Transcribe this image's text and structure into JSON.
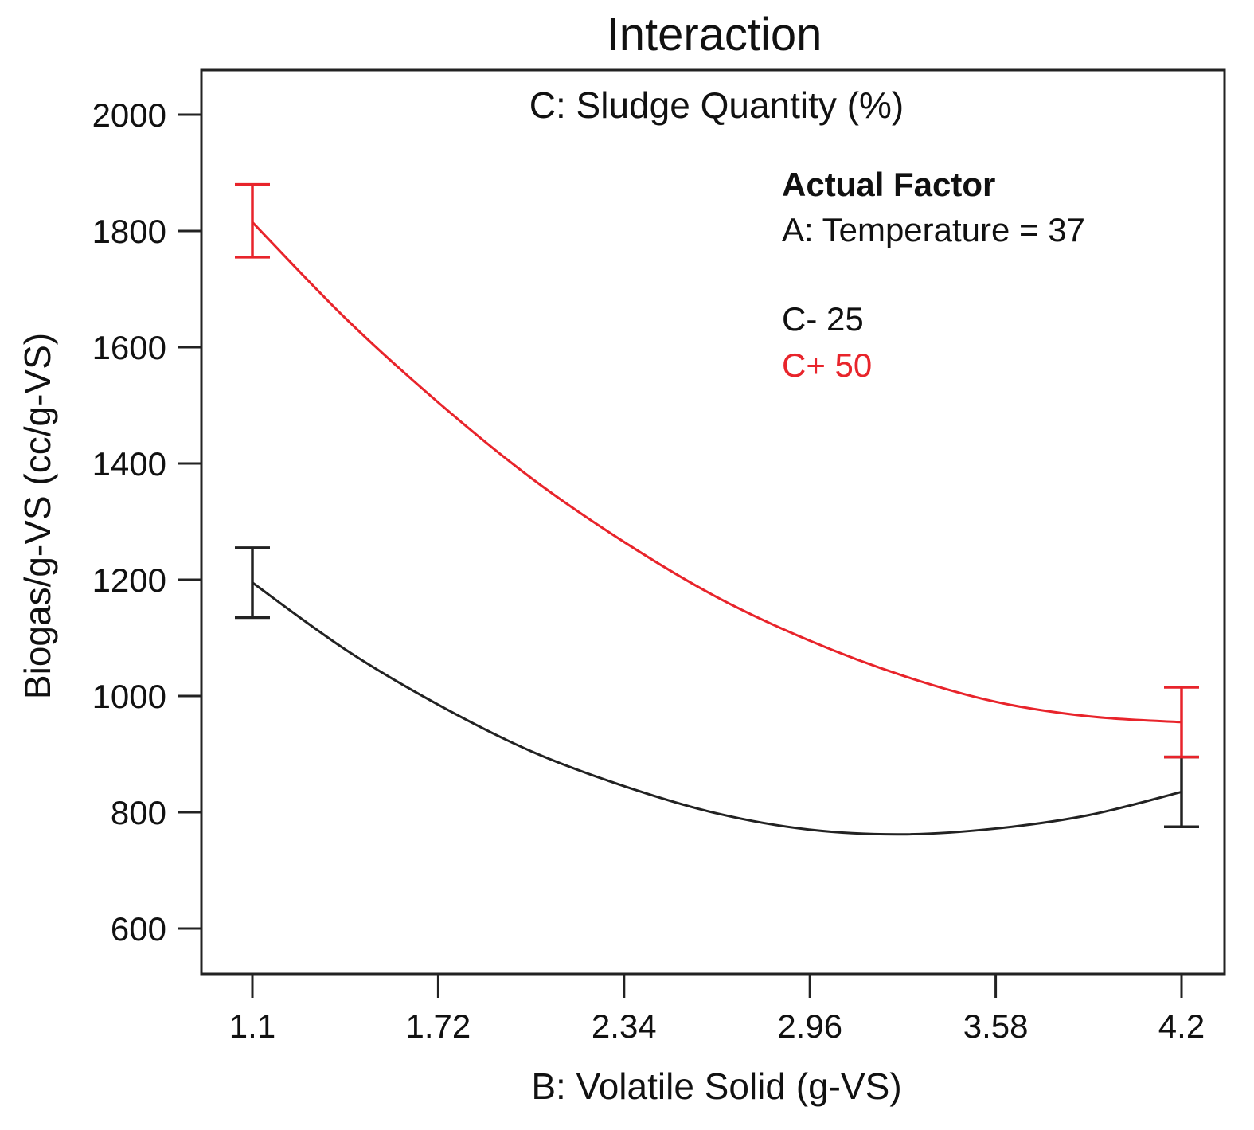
{
  "chart_data": {
    "type": "line",
    "title": "Interaction",
    "subtitle": "C: Sludge Quantity (%)",
    "xlabel": "B: Volatile Solid (g-VS)",
    "ylabel": "Biogas/g-VS (cc/g-VS)",
    "xlim": [
      1.1,
      4.2
    ],
    "ylim": [
      600,
      2000
    ],
    "x_ticks": [
      "1.1",
      "1.72",
      "2.34",
      "2.96",
      "3.58",
      "4.2"
    ],
    "y_ticks": [
      "600",
      "800",
      "1000",
      "1200",
      "1400",
      "1600",
      "1800",
      "2000"
    ],
    "grid": false,
    "legend": {
      "position": "top-right",
      "heading": "Actual Factor",
      "factor": "A: Temperature = 37",
      "entries": [
        "C- 25",
        "C+ 50"
      ]
    },
    "series": [
      {
        "name": "C- 25",
        "color": "#222222",
        "x": [
          1.1,
          1.41,
          1.72,
          2.03,
          2.34,
          2.65,
          2.96,
          3.27,
          3.58,
          3.89,
          4.2
        ],
        "y": [
          1195,
          1080,
          985,
          905,
          845,
          798,
          770,
          762,
          772,
          795,
          835
        ],
        "error_bars": [
          {
            "x": 1.1,
            "low": 1135,
            "high": 1255
          },
          {
            "x": 4.2,
            "low": 775,
            "high": 895
          }
        ]
      },
      {
        "name": "C+ 50",
        "color": "#e8242b",
        "x": [
          1.1,
          1.41,
          1.72,
          2.03,
          2.34,
          2.65,
          2.96,
          3.27,
          3.58,
          3.89,
          4.2
        ],
        "y": [
          1815,
          1650,
          1505,
          1375,
          1265,
          1170,
          1095,
          1035,
          990,
          965,
          955
        ],
        "error_bars": [
          {
            "x": 1.1,
            "low": 1755,
            "high": 1880
          },
          {
            "x": 4.2,
            "low": 895,
            "high": 1015
          }
        ]
      }
    ]
  }
}
